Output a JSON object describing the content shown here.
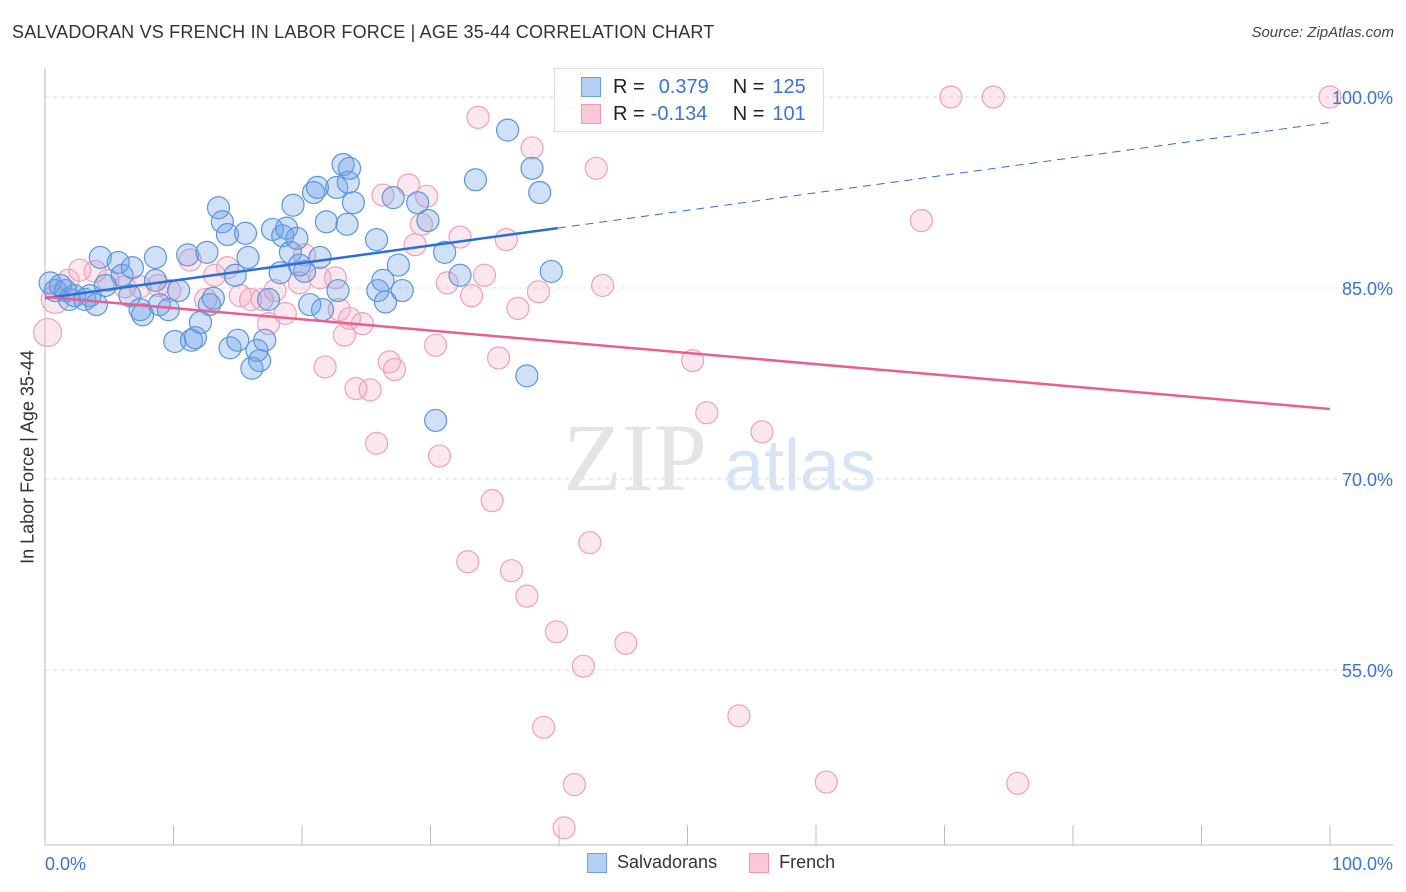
{
  "title": "SALVADORAN VS FRENCH IN LABOR FORCE | AGE 35-44 CORRELATION CHART",
  "source": "Source: ZipAtlas.com",
  "watermark": "ZIPatlas",
  "colors": {
    "blue": "#5a96e0",
    "blue_line": "#2a6fd6",
    "pink": "#f0a0b8",
    "pink_line": "#e8608e",
    "tick_label": "#3a74d6"
  },
  "legend": {
    "rows": [
      {
        "r_label": "R =",
        "r_value": "0.379",
        "n_label": "N =",
        "n_value": "125"
      },
      {
        "r_label": "R =",
        "r_value": "-0.134",
        "n_label": "N =",
        "n_value": "101"
      }
    ]
  },
  "chart_data": {
    "type": "scatter",
    "title": "SALVADORAN VS FRENCH IN LABOR FORCE | AGE 35-44 CORRELATION CHART",
    "xlabel": "",
    "ylabel": "In Labor Force | Age 35-44",
    "xlim": [
      0,
      100
    ],
    "ylim": [
      41.3,
      100
    ],
    "x_tick_labels": [
      "0.0%",
      "100.0%"
    ],
    "y_ticks": [
      100,
      85,
      70,
      55
    ],
    "y_tick_labels": [
      "100.0%",
      "85.0%",
      "70.0%",
      "55.0%"
    ],
    "grid": true,
    "legend_position": "top-center and bottom",
    "series": [
      {
        "name": "Salvadorans",
        "r": 0.379,
        "n": 125,
        "trend": {
          "x0": 0,
          "y0": 84.2,
          "x_solid_end": 39.9,
          "x1": 100,
          "y1": 98.0
        },
        "points": [
          [
            0.4,
            85.4
          ],
          [
            0.8,
            84.8
          ],
          [
            1.2,
            85.2
          ],
          [
            1.6,
            84.8
          ],
          [
            1.9,
            84.1
          ],
          [
            2.3,
            84.4
          ],
          [
            3.1,
            84.1
          ],
          [
            3.5,
            84.4
          ],
          [
            4.0,
            83.7
          ],
          [
            4.3,
            87.4
          ],
          [
            4.7,
            85.2
          ],
          [
            5.7,
            87.0
          ],
          [
            6.0,
            86.0
          ],
          [
            6.8,
            86.6
          ],
          [
            6.6,
            84.4
          ],
          [
            7.4,
            83.3
          ],
          [
            7.6,
            82.9
          ],
          [
            8.6,
            87.4
          ],
          [
            8.6,
            85.6
          ],
          [
            8.9,
            83.7
          ],
          [
            9.6,
            83.3
          ],
          [
            10.1,
            80.8
          ],
          [
            10.4,
            84.8
          ],
          [
            11.1,
            87.6
          ],
          [
            11.4,
            80.9
          ],
          [
            11.7,
            81.1
          ],
          [
            12.1,
            82.3
          ],
          [
            12.6,
            87.8
          ],
          [
            12.8,
            83.7
          ],
          [
            13.1,
            84.2
          ],
          [
            13.5,
            91.3
          ],
          [
            13.8,
            90.2
          ],
          [
            14.2,
            89.2
          ],
          [
            14.4,
            80.3
          ],
          [
            14.8,
            86.0
          ],
          [
            15.0,
            80.9
          ],
          [
            15.6,
            89.3
          ],
          [
            15.8,
            87.4
          ],
          [
            16.1,
            78.7
          ],
          [
            16.5,
            80.1
          ],
          [
            16.7,
            79.3
          ],
          [
            17.1,
            80.9
          ],
          [
            17.4,
            84.1
          ],
          [
            17.7,
            89.6
          ],
          [
            18.3,
            86.2
          ],
          [
            18.5,
            89.1
          ],
          [
            18.8,
            89.7
          ],
          [
            19.1,
            87.8
          ],
          [
            19.3,
            91.5
          ],
          [
            19.6,
            88.9
          ],
          [
            19.8,
            86.8
          ],
          [
            20.2,
            86.3
          ],
          [
            20.6,
            83.7
          ],
          [
            20.9,
            92.5
          ],
          [
            21.2,
            92.9
          ],
          [
            21.4,
            87.4
          ],
          [
            21.6,
            83.3
          ],
          [
            21.9,
            90.2
          ],
          [
            22.7,
            92.9
          ],
          [
            22.8,
            84.8
          ],
          [
            23.2,
            94.7
          ],
          [
            23.5,
            90.0
          ],
          [
            23.6,
            93.3
          ],
          [
            23.7,
            94.4
          ],
          [
            24.0,
            91.7
          ],
          [
            25.8,
            88.8
          ],
          [
            25.9,
            84.8
          ],
          [
            26.3,
            85.6
          ],
          [
            26.5,
            83.9
          ],
          [
            27.1,
            92.1
          ],
          [
            27.5,
            86.8
          ],
          [
            27.8,
            84.8
          ],
          [
            29.0,
            91.7
          ],
          [
            29.8,
            90.3
          ],
          [
            30.4,
            74.6
          ],
          [
            31.1,
            87.8
          ],
          [
            32.3,
            86.0
          ],
          [
            33.5,
            93.5
          ],
          [
            36.0,
            97.4
          ],
          [
            37.5,
            78.1
          ],
          [
            37.9,
            94.4
          ],
          [
            38.5,
            92.5
          ],
          [
            39.4,
            86.3
          ]
        ]
      },
      {
        "name": "French",
        "r": -0.134,
        "n": 101,
        "trend": {
          "x0": 0,
          "y0": 84.3,
          "x1": 100,
          "y1": 75.5
        },
        "points": [
          [
            0.2,
            81.5
          ],
          [
            0.8,
            84.1
          ],
          [
            1.8,
            85.6
          ],
          [
            2.7,
            86.4
          ],
          [
            3.9,
            86.3
          ],
          [
            4.9,
            85.6
          ],
          [
            6.2,
            85.1
          ],
          [
            7.4,
            85.1
          ],
          [
            8.8,
            85.2
          ],
          [
            9.7,
            84.8
          ],
          [
            11.3,
            87.2
          ],
          [
            12.5,
            84.1
          ],
          [
            13.2,
            86.0
          ],
          [
            14.2,
            86.6
          ],
          [
            15.2,
            84.4
          ],
          [
            16.0,
            84.1
          ],
          [
            16.9,
            84.1
          ],
          [
            17.4,
            82.2
          ],
          [
            17.9,
            84.8
          ],
          [
            18.7,
            83.0
          ],
          [
            19.8,
            85.4
          ],
          [
            20.2,
            87.6
          ],
          [
            21.4,
            85.8
          ],
          [
            21.8,
            78.8
          ],
          [
            22.6,
            85.8
          ],
          [
            22.9,
            83.3
          ],
          [
            23.3,
            81.3
          ],
          [
            23.7,
            82.6
          ],
          [
            24.2,
            77.1
          ],
          [
            24.7,
            82.2
          ],
          [
            25.3,
            77.0
          ],
          [
            25.8,
            72.8
          ],
          [
            26.3,
            92.3
          ],
          [
            26.8,
            79.2
          ],
          [
            27.2,
            78.6
          ],
          [
            28.3,
            93.1
          ],
          [
            28.8,
            88.4
          ],
          [
            29.3,
            90.0
          ],
          [
            29.7,
            92.2
          ],
          [
            30.4,
            80.5
          ],
          [
            30.7,
            71.8
          ],
          [
            31.3,
            85.4
          ],
          [
            32.3,
            89.0
          ],
          [
            32.9,
            63.5
          ],
          [
            33.2,
            84.4
          ],
          [
            33.7,
            98.4
          ],
          [
            34.2,
            86.0
          ],
          [
            34.8,
            68.3
          ],
          [
            35.3,
            79.5
          ],
          [
            35.9,
            88.8
          ],
          [
            36.3,
            62.8
          ],
          [
            36.8,
            83.4
          ],
          [
            37.5,
            60.8
          ],
          [
            37.9,
            96.0
          ],
          [
            38.4,
            84.7
          ],
          [
            38.8,
            50.5
          ],
          [
            39.8,
            58.0
          ],
          [
            40.4,
            42.6
          ],
          [
            41.2,
            46.0
          ],
          [
            41.9,
            55.3
          ],
          [
            42.4,
            65.0
          ],
          [
            42.9,
            94.4
          ],
          [
            43.4,
            85.2
          ],
          [
            45.2,
            57.1
          ],
          [
            46.5,
            100
          ],
          [
            40.9,
            100
          ],
          [
            50.4,
            79.3
          ],
          [
            51.5,
            75.2
          ],
          [
            54.0,
            51.4
          ],
          [
            55.8,
            73.7
          ],
          [
            60.8,
            46.2
          ],
          [
            68.2,
            90.3
          ],
          [
            70.5,
            100
          ],
          [
            73.8,
            100
          ],
          [
            75.7,
            46.1
          ],
          [
            100,
            100
          ]
        ]
      }
    ]
  }
}
